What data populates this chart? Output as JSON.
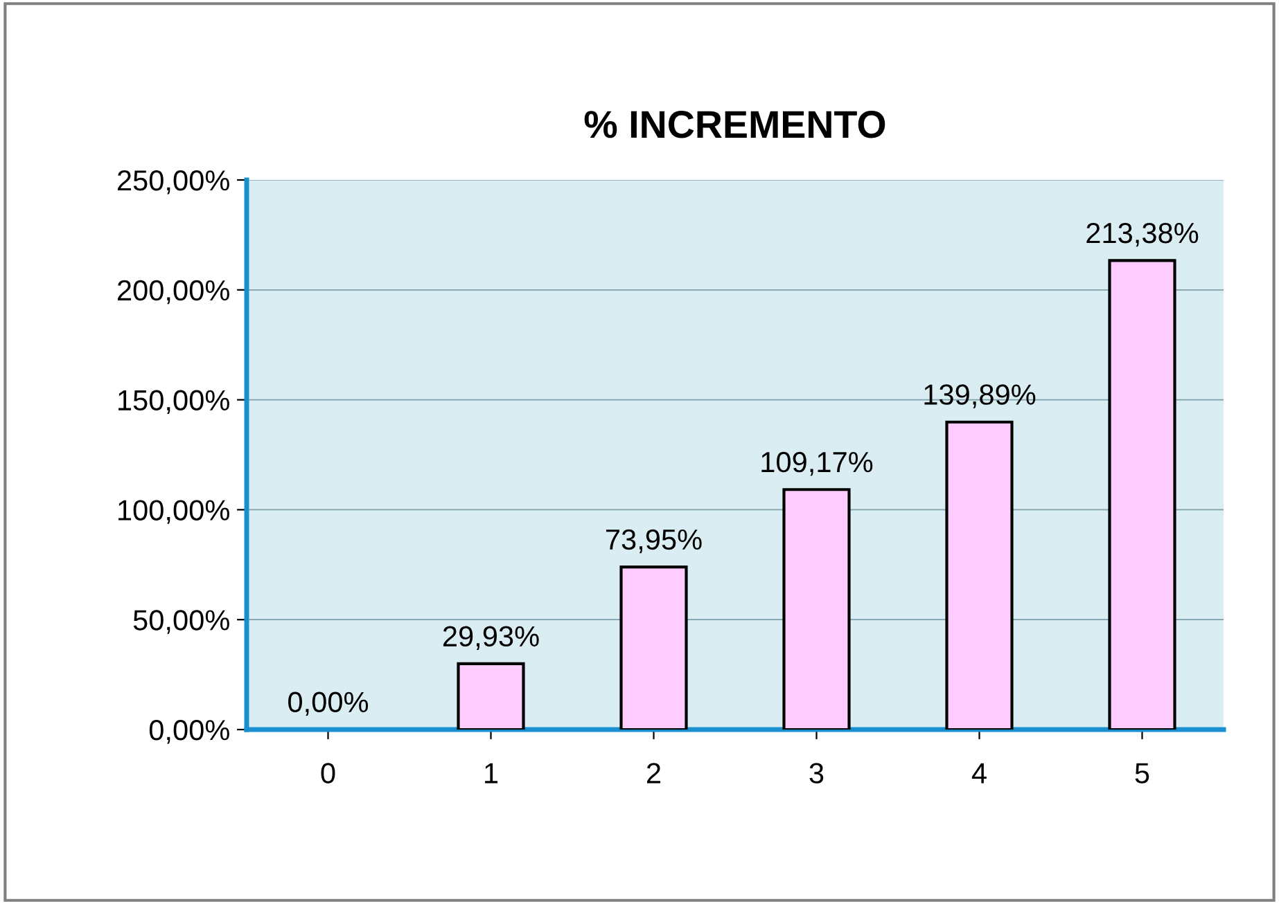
{
  "chart_data": {
    "type": "bar",
    "title": "% INCREMENTO",
    "categories": [
      "0",
      "1",
      "2",
      "3",
      "4",
      "5"
    ],
    "values": [
      0,
      29.93,
      73.95,
      109.17,
      139.89,
      213.38
    ],
    "value_labels": [
      "0,00%",
      "29,93%",
      "73,95%",
      "109,17%",
      "139,89%",
      "213,38%"
    ],
    "color": "#ffccff",
    "ylim": [
      0,
      250
    ],
    "yticks": [
      {
        "value": 0,
        "label": "0,00%"
      },
      {
        "value": 50,
        "label": "50,00%"
      },
      {
        "value": 100,
        "label": "100,00%"
      },
      {
        "value": 150,
        "label": "150,00%"
      },
      {
        "value": 200,
        "label": "200,00%"
      },
      {
        "value": 250,
        "label": "250,00%"
      }
    ],
    "grid": "y",
    "legend": false
  }
}
